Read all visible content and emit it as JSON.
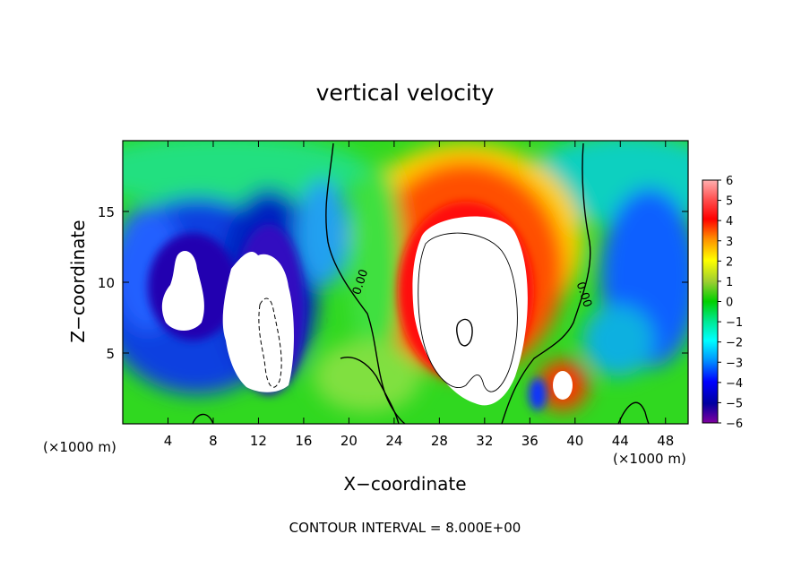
{
  "chart_data": {
    "type": "heatmap",
    "title": "vertical velocity",
    "xlabel": "X−coordinate",
    "ylabel": "Z−coordinate",
    "x_unit": "(×1000 m)",
    "y_unit": "(×1000 m)",
    "xlim": [
      0,
      50
    ],
    "ylim": [
      0,
      20
    ],
    "x_ticks": [
      "4",
      "8",
      "12",
      "16",
      "20",
      "24",
      "28",
      "32",
      "36",
      "40",
      "44",
      "48"
    ],
    "y_ticks": [
      "5",
      "10",
      "15"
    ],
    "colorbar": {
      "labels": [
        "6",
        "5",
        "4",
        "3",
        "2",
        "1",
        "0",
        "−1",
        "−2",
        "−3",
        "−4",
        "−5",
        "−6"
      ],
      "range": [
        -6,
        6
      ]
    },
    "contour_labels": [
      "0.00",
      "0.00"
    ],
    "contour_interval_text": "CONTOUR INTERVAL = 8.000E+00"
  }
}
